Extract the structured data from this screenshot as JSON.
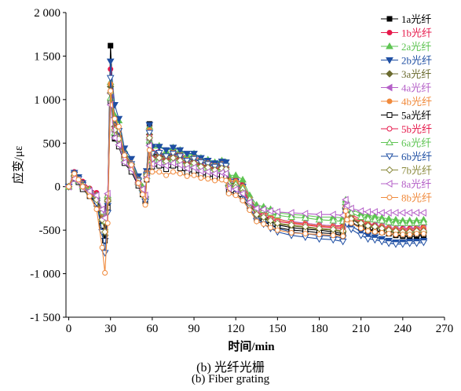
{
  "chart_data": {
    "type": "line",
    "title": "",
    "xlabel": "时间/min",
    "ylabel": "应变/με",
    "xlim": [
      -2,
      270
    ],
    "ylim": [
      -1500,
      2000
    ],
    "xticks": [
      0,
      30,
      60,
      90,
      120,
      150,
      180,
      210,
      240,
      270
    ],
    "yticks": [
      2000,
      1500,
      1000,
      500,
      0,
      -500,
      -1000,
      -1500
    ],
    "xtick_labels": [
      "0",
      "30",
      "60",
      "90",
      "120",
      "150",
      "180",
      "210",
      "240",
      "270"
    ],
    "ytick_labels": [
      "2 000",
      "1 500",
      "1 000",
      "500",
      "0",
      "-500",
      "-1 000",
      "-1 500"
    ],
    "grid": false,
    "legend_position": "top-right",
    "x": [
      0,
      4,
      7,
      10,
      15,
      20,
      24,
      26,
      28,
      30,
      33,
      36,
      40,
      45,
      50,
      53,
      55,
      56,
      58,
      60,
      65,
      70,
      75,
      80,
      85,
      90,
      95,
      100,
      105,
      110,
      113,
      115,
      120,
      125,
      130,
      135,
      140,
      145,
      150,
      160,
      170,
      180,
      190,
      197,
      199,
      200,
      203,
      210,
      215,
      220,
      225,
      230,
      235,
      240,
      245,
      250,
      255
    ],
    "series": [
      {
        "name": "1a光纤",
        "color": "#000000",
        "marker": "square-filled",
        "values": [
          0,
          150,
          100,
          20,
          -60,
          -140,
          -400,
          -550,
          -150,
          1620,
          550,
          560,
          380,
          210,
          80,
          -60,
          -150,
          150,
          720,
          370,
          370,
          330,
          390,
          370,
          310,
          330,
          290,
          270,
          240,
          270,
          230,
          40,
          40,
          -20,
          -140,
          -290,
          -320,
          -390,
          -440,
          -470,
          -490,
          -500,
          -520,
          -540,
          -260,
          -310,
          -370,
          -440,
          -490,
          -500,
          -520,
          -540,
          -560,
          -570,
          -580,
          -570,
          -560
        ]
      },
      {
        "name": "1b光纤",
        "color": "#e6194b",
        "marker": "circle-filled",
        "values": [
          0,
          170,
          100,
          60,
          -20,
          -70,
          -290,
          -420,
          -100,
          1350,
          790,
          670,
          360,
          260,
          80,
          -20,
          -140,
          150,
          680,
          400,
          400,
          350,
          400,
          380,
          340,
          350,
          310,
          290,
          260,
          270,
          250,
          80,
          90,
          30,
          -120,
          -250,
          -280,
          -330,
          -370,
          -410,
          -420,
          -440,
          -450,
          -450,
          -160,
          -260,
          -320,
          -380,
          -420,
          -440,
          -450,
          -470,
          -480,
          -480,
          -480,
          -470,
          -460
        ]
      },
      {
        "name": "2a光纤",
        "color": "#5ec453",
        "marker": "triangle-up-filled",
        "values": [
          0,
          140,
          100,
          30,
          -30,
          -110,
          -350,
          -470,
          -120,
          1200,
          820,
          760,
          420,
          280,
          110,
          0,
          -100,
          170,
          690,
          470,
          470,
          410,
          450,
          420,
          360,
          380,
          330,
          310,
          280,
          300,
          280,
          130,
          130,
          80,
          -100,
          -210,
          -230,
          -260,
          -300,
          -320,
          -330,
          -350,
          -350,
          -360,
          -150,
          -220,
          -260,
          -310,
          -330,
          -340,
          -360,
          -370,
          -380,
          -390,
          -390,
          -390,
          -380
        ]
      },
      {
        "name": "2b光纤",
        "color": "#1f4fa3",
        "marker": "triangle-down-filled",
        "values": [
          0,
          160,
          110,
          40,
          -70,
          -160,
          -450,
          -620,
          -220,
          1440,
          940,
          780,
          440,
          320,
          120,
          -40,
          -140,
          180,
          710,
          460,
          460,
          420,
          450,
          420,
          380,
          380,
          330,
          300,
          270,
          290,
          280,
          60,
          60,
          0,
          -180,
          -350,
          -390,
          -440,
          -480,
          -520,
          -540,
          -560,
          -570,
          -590,
          -280,
          -400,
          -450,
          -520,
          -560,
          -580,
          -600,
          -620,
          -640,
          -640,
          -630,
          -630,
          -620
        ]
      },
      {
        "name": "3a光纤",
        "color": "#6b6b2f",
        "marker": "diamond-filled",
        "values": [
          0,
          130,
          80,
          10,
          -80,
          -160,
          -400,
          -560,
          -170,
          1150,
          690,
          580,
          340,
          260,
          50,
          -40,
          -120,
          150,
          600,
          340,
          360,
          320,
          360,
          330,
          280,
          300,
          250,
          240,
          210,
          230,
          220,
          10,
          0,
          -60,
          -190,
          -330,
          -360,
          -400,
          -430,
          -450,
          -470,
          -490,
          -500,
          -520,
          -240,
          -320,
          -370,
          -430,
          -460,
          -470,
          -490,
          -510,
          -530,
          -530,
          -540,
          -530,
          -530
        ]
      },
      {
        "name": "4a光纤",
        "color": "#b560c8",
        "marker": "triangle-left-filled",
        "values": [
          0,
          110,
          70,
          0,
          -50,
          -120,
          -320,
          -430,
          -120,
          1070,
          630,
          530,
          320,
          240,
          50,
          -30,
          -110,
          120,
          540,
          310,
          320,
          280,
          320,
          300,
          260,
          270,
          230,
          220,
          190,
          210,
          200,
          20,
          10,
          -40,
          -160,
          -290,
          -320,
          -350,
          -380,
          -400,
          -420,
          -440,
          -450,
          -470,
          -210,
          -300,
          -340,
          -400,
          -430,
          -440,
          -450,
          -470,
          -480,
          -490,
          -490,
          -480,
          -480
        ]
      },
      {
        "name": "4b光纤",
        "color": "#f08a3c",
        "marker": "circle-filled",
        "values": [
          0,
          150,
          90,
          30,
          -40,
          -110,
          -340,
          -470,
          -130,
          1180,
          740,
          640,
          380,
          270,
          80,
          -20,
          -120,
          160,
          650,
          390,
          390,
          350,
          390,
          360,
          310,
          330,
          290,
          270,
          240,
          260,
          240,
          70,
          60,
          0,
          -140,
          -270,
          -300,
          -340,
          -380,
          -410,
          -430,
          -450,
          -460,
          -470,
          -210,
          -290,
          -340,
          -400,
          -430,
          -450,
          -460,
          -480,
          -490,
          -500,
          -500,
          -490,
          -480
        ]
      },
      {
        "name": "5a光纤",
        "color": "#000000",
        "marker": "square-open",
        "values": [
          0,
          90,
          50,
          -30,
          -110,
          -200,
          -450,
          -620,
          -240,
          980,
          560,
          460,
          270,
          170,
          10,
          -90,
          -170,
          80,
          500,
          230,
          240,
          200,
          240,
          210,
          160,
          180,
          140,
          130,
          110,
          120,
          110,
          -60,
          -80,
          -140,
          -250,
          -370,
          -400,
          -440,
          -470,
          -500,
          -510,
          -530,
          -540,
          -560,
          -280,
          -360,
          -410,
          -470,
          -500,
          -510,
          -520,
          -540,
          -550,
          -560,
          -560,
          -550,
          -550
        ]
      },
      {
        "name": "5b光纤",
        "color": "#e6194b",
        "marker": "circle-open",
        "values": [
          0,
          120,
          80,
          10,
          -60,
          -140,
          -370,
          -510,
          -160,
          1100,
          670,
          570,
          340,
          240,
          60,
          -40,
          -130,
          140,
          580,
          330,
          340,
          300,
          340,
          310,
          260,
          280,
          240,
          230,
          200,
          220,
          210,
          30,
          20,
          -40,
          -170,
          -300,
          -330,
          -370,
          -400,
          -420,
          -440,
          -460,
          -470,
          -490,
          -230,
          -310,
          -360,
          -410,
          -440,
          -450,
          -470,
          -490,
          -500,
          -510,
          -510,
          -500,
          -500
        ]
      },
      {
        "name": "6a光纤",
        "color": "#5ec453",
        "marker": "triangle-up-open",
        "values": [
          0,
          100,
          70,
          0,
          -40,
          -100,
          -290,
          -400,
          -100,
          1020,
          620,
          540,
          310,
          230,
          50,
          -20,
          -100,
          120,
          530,
          300,
          310,
          280,
          310,
          290,
          250,
          260,
          220,
          210,
          180,
          200,
          190,
          40,
          30,
          -20,
          -140,
          -250,
          -270,
          -300,
          -330,
          -350,
          -360,
          -380,
          -390,
          -400,
          -180,
          -260,
          -300,
          -350,
          -370,
          -380,
          -390,
          -410,
          -420,
          -420,
          -420,
          -420,
          -410
        ]
      },
      {
        "name": "6b光纤",
        "color": "#1f4fa3",
        "marker": "triangle-down-open",
        "values": [
          0,
          140,
          90,
          20,
          -90,
          -190,
          -520,
          -760,
          -300,
          1250,
          770,
          640,
          370,
          260,
          70,
          -70,
          -170,
          140,
          620,
          380,
          390,
          350,
          380,
          350,
          300,
          320,
          280,
          260,
          230,
          250,
          240,
          -20,
          -30,
          -90,
          -230,
          -390,
          -430,
          -480,
          -520,
          -560,
          -580,
          -600,
          -610,
          -630,
          -320,
          -430,
          -490,
          -560,
          -600,
          -610,
          -630,
          -650,
          -660,
          -660,
          -650,
          -650,
          -640
        ]
      },
      {
        "name": "7b光纤",
        "color": "#8a8a3c",
        "marker": "diamond-open",
        "values": [
          0,
          120,
          70,
          10,
          -70,
          -150,
          -380,
          -520,
          -160,
          1080,
          650,
          550,
          320,
          230,
          40,
          -40,
          -120,
          130,
          560,
          320,
          330,
          290,
          330,
          300,
          250,
          270,
          230,
          220,
          190,
          210,
          200,
          0,
          -10,
          -70,
          -190,
          -320,
          -350,
          -390,
          -420,
          -440,
          -460,
          -480,
          -490,
          -510,
          -240,
          -320,
          -370,
          -420,
          -450,
          -460,
          -480,
          -500,
          -510,
          -520,
          -520,
          -510,
          -510
        ]
      },
      {
        "name": "8a光纤",
        "color": "#b560c8",
        "marker": "triangle-left-open",
        "values": [
          0,
          90,
          60,
          -10,
          -50,
          -100,
          -260,
          -360,
          -80,
          940,
          560,
          480,
          280,
          200,
          30,
          -30,
          -100,
          100,
          470,
          260,
          270,
          240,
          270,
          250,
          210,
          220,
          180,
          170,
          150,
          160,
          150,
          -20,
          -30,
          -80,
          -180,
          -250,
          -260,
          -280,
          -290,
          -300,
          -310,
          -320,
          -320,
          -330,
          -150,
          -220,
          -250,
          -280,
          -290,
          -290,
          -300,
          -300,
          -300,
          -300,
          -300,
          -300,
          -300
        ]
      },
      {
        "name": "8b光纤",
        "color": "#f08a3c",
        "marker": "circle-open",
        "values": [
          0,
          150,
          80,
          0,
          -110,
          -260,
          -700,
          -990,
          -420,
          1100,
          780,
          690,
          360,
          250,
          40,
          -90,
          -210,
          80,
          420,
          170,
          170,
          130,
          170,
          150,
          120,
          130,
          100,
          90,
          70,
          80,
          70,
          -80,
          -100,
          -160,
          -270,
          -400,
          -430,
          -470,
          -500,
          -530,
          -540,
          -550,
          -560,
          -570,
          -280,
          -380,
          -420,
          -480,
          -510,
          -520,
          -530,
          -540,
          -550,
          -550,
          -550,
          -540,
          -540
        ]
      }
    ]
  },
  "caption": {
    "line1": "(b) 光纤光栅",
    "line2": "(b) Fiber grating"
  }
}
